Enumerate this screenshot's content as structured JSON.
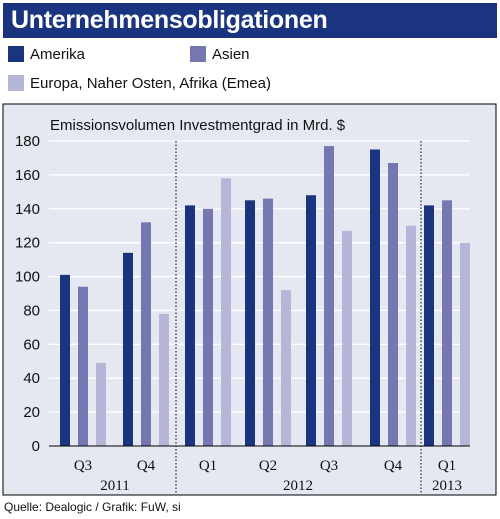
{
  "header": {
    "title": "Unternehmensobligationen"
  },
  "legend": [
    {
      "label": "Amerika",
      "color": "#1a3480",
      "icon": "legend-swatch-dark-blue"
    },
    {
      "label": "Asien",
      "color": "#7578b0",
      "icon": "legend-swatch-medium-blue"
    },
    {
      "label": "Europa, Naher Osten, Afrika (Emea)",
      "color": "#b4b7d8",
      "icon": "legend-swatch-light-blue"
    }
  ],
  "source": "Quelle: Dealogic / Grafik: FuW, si",
  "colors": {
    "panel_background": "#e6e8f1",
    "frame": "#000000",
    "header_background": "#1a3480",
    "grid": "#ffffff"
  },
  "chart_data": {
    "type": "bar",
    "title": "Emissionsvolumen Investmentgrad in Mrd. $",
    "categories": [
      "Q3",
      "Q4",
      "Q1",
      "Q2",
      "Q3",
      "Q4",
      "Q1"
    ],
    "years": [
      {
        "label": "2011",
        "categories": [
          "Q3",
          "Q4"
        ]
      },
      {
        "label": "2012",
        "categories": [
          "Q1",
          "Q2",
          "Q3",
          "Q4"
        ]
      },
      {
        "label": "2013",
        "categories": [
          "Q1"
        ]
      }
    ],
    "series": [
      {
        "name": "Amerika",
        "color": "#1a3480",
        "values": [
          101,
          114,
          142,
          145,
          148,
          175,
          142
        ]
      },
      {
        "name": "Asien",
        "color": "#7578b0",
        "values": [
          94,
          132,
          140,
          146,
          177,
          167,
          145
        ]
      },
      {
        "name": "Europa, Naher Osten, Afrika (Emea)",
        "color": "#b4b7d8",
        "values": [
          49,
          78,
          158,
          92,
          127,
          130,
          120
        ]
      }
    ],
    "yticks": [
      0,
      20,
      40,
      60,
      80,
      100,
      120,
      140,
      160,
      180
    ],
    "ylim": [
      0,
      180
    ],
    "grid": true,
    "legend_position": "top"
  }
}
